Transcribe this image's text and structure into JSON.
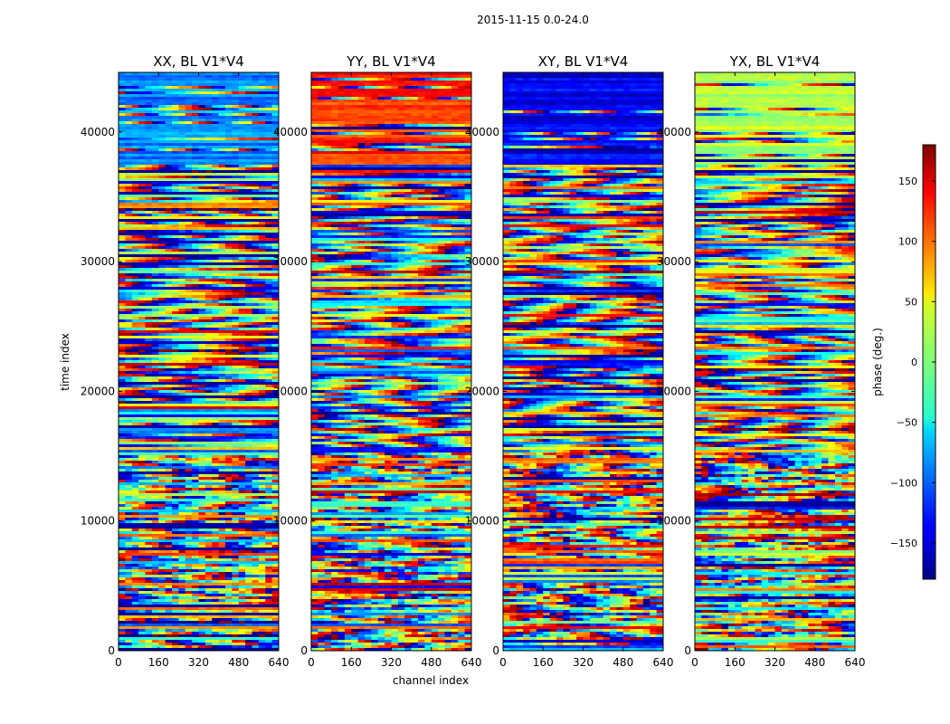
{
  "chart_data": {
    "type": "heatmap",
    "suptitle": "2015-11-15 0.0-24.0",
    "xlabel": "channel index",
    "ylabel": "time index",
    "xlim": [
      0,
      640
    ],
    "ylim": [
      0,
      44600
    ],
    "xticks": [
      0,
      160,
      320,
      480,
      640
    ],
    "yticks": [
      0,
      10000,
      20000,
      30000,
      40000
    ],
    "colormap": "jet",
    "colorbar": {
      "label": "phase (deg.)",
      "range": [
        -180,
        180
      ],
      "ticks": [
        -150,
        -100,
        -50,
        0,
        50,
        100,
        150
      ],
      "tick_labels": [
        "−150",
        "−100",
        "−50",
        "0",
        "50",
        "100",
        "150"
      ]
    },
    "panels": [
      {
        "title": "XX, BL V1*V4",
        "pol": "XX",
        "baseline": "V1*V4",
        "dominant_phase_upper": -85
      },
      {
        "title": "YY, BL V1*V4",
        "pol": "YY",
        "baseline": "V1*V4",
        "dominant_phase_upper": 120
      },
      {
        "title": "XY, BL V1*V4",
        "pol": "XY",
        "baseline": "V1*V4",
        "dominant_phase_upper": -140
      },
      {
        "title": "YX, BL V1*V4",
        "pol": "YX",
        "baseline": "V1*V4",
        "dominant_phase_upper": 20
      }
    ]
  }
}
